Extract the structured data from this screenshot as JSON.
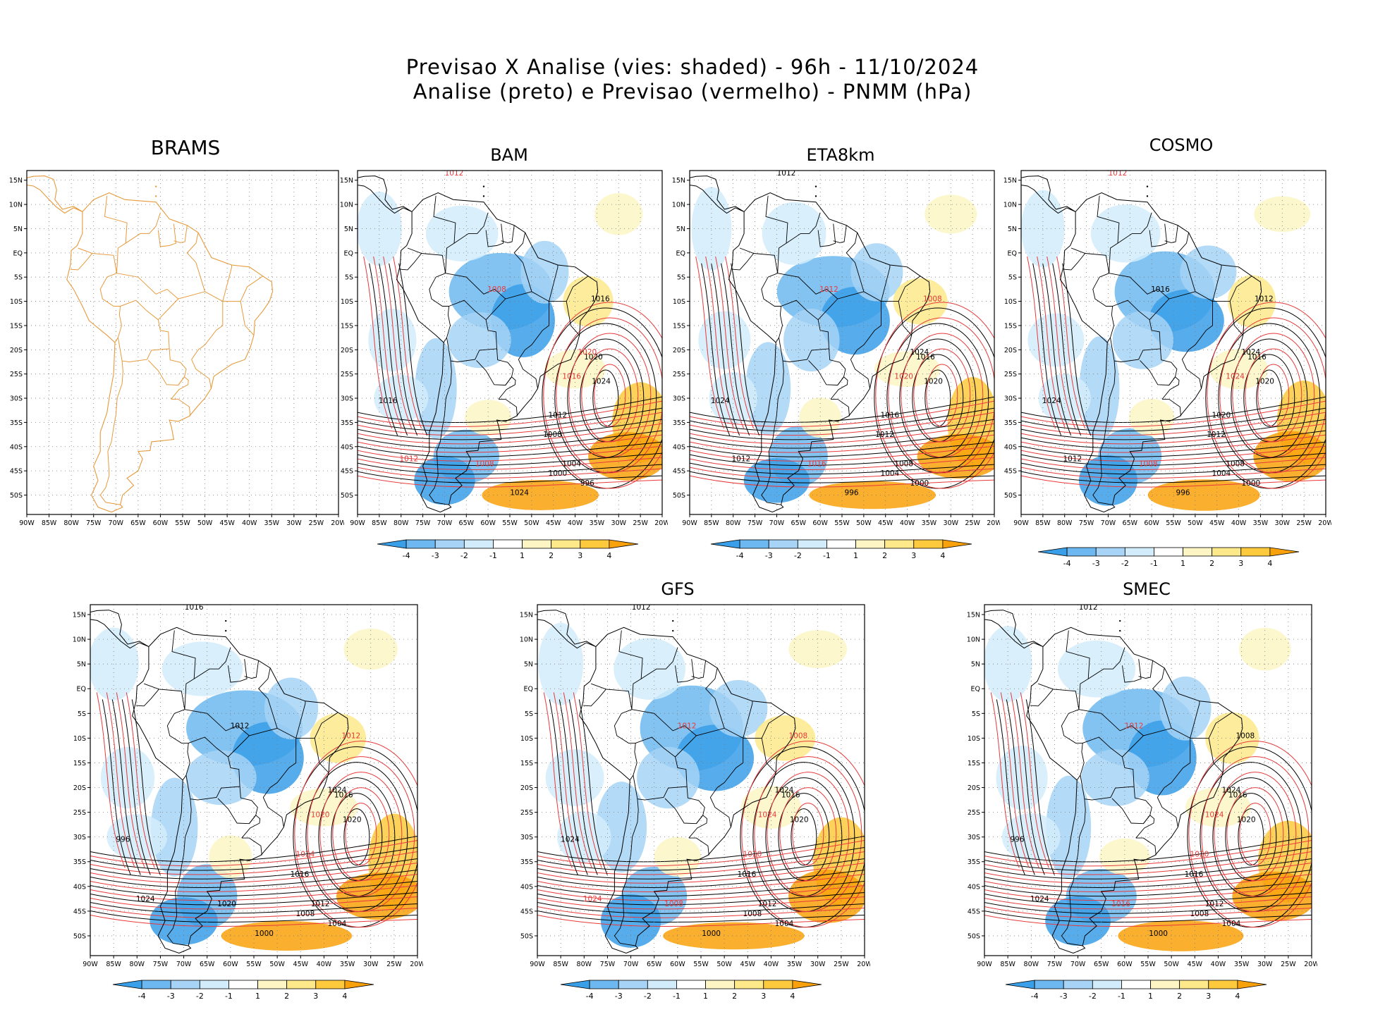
{
  "header": {
    "line1": "Previsao X Analise (vies: shaded) - 96h - 11/10/2024",
    "line2": "Analise (preto) e Previsao (vermelho) - PNMM (hPa)"
  },
  "axes": {
    "lon_labels": [
      "90W",
      "85W",
      "80W",
      "75W",
      "70W",
      "65W",
      "60W",
      "55W",
      "50W",
      "45W",
      "40W",
      "35W",
      "30W",
      "25W",
      "20W"
    ],
    "lat_labels": [
      "15N",
      "10N",
      "5N",
      "EQ",
      "5S",
      "10S",
      "15S",
      "20S",
      "25S",
      "30S",
      "35S",
      "40S",
      "45S",
      "50S"
    ]
  },
  "colorbar": {
    "labels": [
      "-4",
      "-3",
      "-2",
      "-1",
      "1",
      "2",
      "3",
      "4"
    ]
  },
  "colors": {
    "analysis_contour": "#000000",
    "forecast_contour": "#e8393a",
    "coastline_brams": "#e69a3c",
    "neg_bias": [
      "#3a9fe9",
      "#6db8f0",
      "#a6d3f6",
      "#d2ecfb"
    ],
    "pos_bias": [
      "#fdf6c4",
      "#fde98a",
      "#fdca3d",
      "#f9a10b"
    ]
  },
  "panels": [
    {
      "id": "brams",
      "title": "BRAMS",
      "has_bias": false,
      "labels": []
    },
    {
      "id": "bam",
      "title": "BAM",
      "has_bias": true,
      "labels": [
        {
          "t": "1012",
          "c": "r"
        },
        {
          "t": "1008",
          "c": "r"
        },
        {
          "t": "1016",
          "c": "k"
        },
        {
          "t": "1020",
          "c": "k"
        },
        {
          "t": "1024",
          "c": "k"
        },
        {
          "t": "1020",
          "c": "r"
        },
        {
          "t": "1016",
          "c": "r"
        },
        {
          "t": "1012",
          "c": "k"
        },
        {
          "t": "1008",
          "c": "k"
        },
        {
          "t": "1004",
          "c": "k"
        },
        {
          "t": "1000",
          "c": "k"
        },
        {
          "t": "996",
          "c": "k"
        },
        {
          "t": "1024",
          "c": "k"
        },
        {
          "t": "1016",
          "c": "k"
        },
        {
          "t": "1012",
          "c": "r"
        },
        {
          "t": "1008",
          "c": "r"
        }
      ]
    },
    {
      "id": "eta8km",
      "title": "ETA8km",
      "has_bias": true,
      "labels": [
        {
          "t": "1012",
          "c": "k"
        },
        {
          "t": "1012",
          "c": "r"
        },
        {
          "t": "1008",
          "c": "r"
        },
        {
          "t": "1016",
          "c": "k"
        },
        {
          "t": "1020",
          "c": "k"
        },
        {
          "t": "1024",
          "c": "k"
        },
        {
          "t": "1020",
          "c": "r"
        },
        {
          "t": "1016",
          "c": "k"
        },
        {
          "t": "1012",
          "c": "k"
        },
        {
          "t": "1008",
          "c": "k"
        },
        {
          "t": "1004",
          "c": "k"
        },
        {
          "t": "1000",
          "c": "k"
        },
        {
          "t": "996",
          "c": "k"
        },
        {
          "t": "1024",
          "c": "k"
        },
        {
          "t": "1012",
          "c": "k"
        },
        {
          "t": "1016",
          "c": "r"
        }
      ]
    },
    {
      "id": "cosmo",
      "title": "COSMO",
      "has_bias": true,
      "labels": [
        {
          "t": "1012",
          "c": "r"
        },
        {
          "t": "1016",
          "c": "k"
        },
        {
          "t": "1012",
          "c": "k"
        },
        {
          "t": "1016",
          "c": "k"
        },
        {
          "t": "1020",
          "c": "k"
        },
        {
          "t": "1024",
          "c": "k"
        },
        {
          "t": "1024",
          "c": "r"
        },
        {
          "t": "1020",
          "c": "k"
        },
        {
          "t": "1012",
          "c": "k"
        },
        {
          "t": "1008",
          "c": "k"
        },
        {
          "t": "1004",
          "c": "k"
        },
        {
          "t": "1000",
          "c": "k"
        },
        {
          "t": "996",
          "c": "k"
        },
        {
          "t": "1024",
          "c": "k"
        },
        {
          "t": "1012",
          "c": "k"
        },
        {
          "t": "1008",
          "c": "r"
        }
      ]
    },
    {
      "id": "panel5",
      "title": "",
      "has_bias": true,
      "labels": [
        {
          "t": "1016",
          "c": "k"
        },
        {
          "t": "1012",
          "c": "k"
        },
        {
          "t": "1012",
          "c": "r"
        },
        {
          "t": "1016",
          "c": "k"
        },
        {
          "t": "1020",
          "c": "k"
        },
        {
          "t": "1024",
          "c": "k"
        },
        {
          "t": "1020",
          "c": "r"
        },
        {
          "t": "1024",
          "c": "r"
        },
        {
          "t": "1016",
          "c": "k"
        },
        {
          "t": "1012",
          "c": "k"
        },
        {
          "t": "1008",
          "c": "k"
        },
        {
          "t": "1004",
          "c": "k"
        },
        {
          "t": "1000",
          "c": "k"
        },
        {
          "t": "996",
          "c": "k"
        },
        {
          "t": "1024",
          "c": "k"
        },
        {
          "t": "1020",
          "c": "k"
        }
      ]
    },
    {
      "id": "gfs",
      "title": "GFS",
      "has_bias": true,
      "labels": [
        {
          "t": "1012",
          "c": "k"
        },
        {
          "t": "1012",
          "c": "r"
        },
        {
          "t": "1008",
          "c": "r"
        },
        {
          "t": "1016",
          "c": "k"
        },
        {
          "t": "1020",
          "c": "k"
        },
        {
          "t": "1024",
          "c": "k"
        },
        {
          "t": "1024",
          "c": "r"
        },
        {
          "t": "1020",
          "c": "r"
        },
        {
          "t": "1016",
          "c": "k"
        },
        {
          "t": "1012",
          "c": "k"
        },
        {
          "t": "1008",
          "c": "k"
        },
        {
          "t": "1004",
          "c": "k"
        },
        {
          "t": "1000",
          "c": "k"
        },
        {
          "t": "1024",
          "c": "k"
        },
        {
          "t": "1024",
          "c": "r"
        },
        {
          "t": "1008",
          "c": "r"
        }
      ]
    },
    {
      "id": "smec",
      "title": "SMEC",
      "has_bias": true,
      "labels": [
        {
          "t": "1012",
          "c": "k"
        },
        {
          "t": "1012",
          "c": "r"
        },
        {
          "t": "1008",
          "c": "k"
        },
        {
          "t": "1016",
          "c": "k"
        },
        {
          "t": "1020",
          "c": "k"
        },
        {
          "t": "1024",
          "c": "k"
        },
        {
          "t": "1024",
          "c": "r"
        },
        {
          "t": "1020",
          "c": "r"
        },
        {
          "t": "1016",
          "c": "k"
        },
        {
          "t": "1012",
          "c": "k"
        },
        {
          "t": "1008",
          "c": "k"
        },
        {
          "t": "1004",
          "c": "k"
        },
        {
          "t": "1000",
          "c": "k"
        },
        {
          "t": "996",
          "c": "k"
        },
        {
          "t": "1024",
          "c": "k"
        },
        {
          "t": "1016",
          "c": "r"
        }
      ]
    }
  ]
}
